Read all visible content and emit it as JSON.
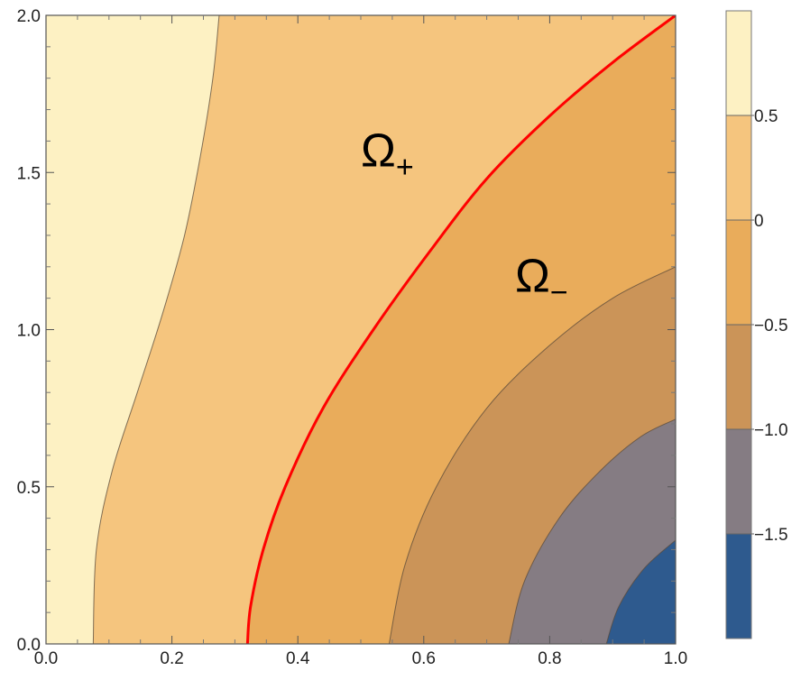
{
  "chart_data": {
    "type": "contour",
    "x_ticks": [
      "0.0",
      "0.2",
      "0.4",
      "0.6",
      "0.8",
      "1.0"
    ],
    "y_ticks": [
      "0.0",
      "0.5",
      "1.0",
      "1.5",
      "2.0"
    ],
    "xlim": [
      0,
      1
    ],
    "ylim": [
      0,
      2
    ],
    "grid": false,
    "contour_levels": [
      -1.5,
      -1.0,
      -0.5,
      0,
      0.5
    ],
    "levels": [
      {
        "range": [
          -2.0,
          -1.5
        ],
        "color": "#2e5a8e"
      },
      {
        "range": [
          -1.5,
          -1.0
        ],
        "color": "#857c83"
      },
      {
        "range": [
          -1.0,
          -0.5
        ],
        "color": "#cb9458"
      },
      {
        "range": [
          -0.5,
          0.0
        ],
        "color": "#e9ac5b"
      },
      {
        "range": [
          0.0,
          0.5
        ],
        "color": "#f5c57e"
      },
      {
        "range": [
          0.5,
          1.0
        ],
        "color": "#fdf1c3"
      }
    ],
    "contours": [
      {
        "level": 0.5,
        "points": [
          [
            0.075,
            0.0
          ],
          [
            0.08,
            0.3
          ],
          [
            0.105,
            0.55
          ],
          [
            0.145,
            0.8
          ],
          [
            0.185,
            1.05
          ],
          [
            0.22,
            1.3
          ],
          [
            0.245,
            1.55
          ],
          [
            0.265,
            1.8
          ],
          [
            0.275,
            2.0
          ]
        ]
      },
      {
        "level": -0.5,
        "points": [
          [
            0.545,
            0.0
          ],
          [
            0.57,
            0.25
          ],
          [
            0.62,
            0.5
          ],
          [
            0.7,
            0.75
          ],
          [
            0.8,
            0.95
          ],
          [
            0.9,
            1.1
          ],
          [
            1.0,
            1.2
          ]
        ]
      },
      {
        "level": -1.0,
        "points": [
          [
            0.735,
            0.0
          ],
          [
            0.76,
            0.2
          ],
          [
            0.815,
            0.4
          ],
          [
            0.88,
            0.55
          ],
          [
            0.945,
            0.66
          ],
          [
            1.0,
            0.715
          ]
        ]
      },
      {
        "level": -1.5,
        "points": [
          [
            0.89,
            0.0
          ],
          [
            0.91,
            0.12
          ],
          [
            0.95,
            0.24
          ],
          [
            1.0,
            0.33
          ]
        ]
      }
    ],
    "boundary_curve": {
      "color": "#ff0000",
      "points": [
        [
          0.32,
          0.0
        ],
        [
          0.325,
          0.12
        ],
        [
          0.345,
          0.3
        ],
        [
          0.38,
          0.5
        ],
        [
          0.44,
          0.75
        ],
        [
          0.52,
          1.0
        ],
        [
          0.61,
          1.25
        ],
        [
          0.7,
          1.48
        ],
        [
          0.8,
          1.68
        ],
        [
          0.9,
          1.85
        ],
        [
          1.0,
          2.0
        ]
      ]
    },
    "annotations": [
      {
        "base": "Ω",
        "sub": "+",
        "x": 0.5,
        "y": 1.52
      },
      {
        "base": "Ω",
        "sub": "−",
        "x": 0.745,
        "y": 1.12
      }
    ],
    "colorbar": {
      "range": [
        -2.0,
        1.0
      ],
      "tick_values": [
        0.5,
        0,
        -0.5,
        -1.0,
        -1.5
      ],
      "tick_labels": [
        "0.5",
        "0",
        "−0.5",
        "−1.0",
        "−1.5"
      ]
    }
  }
}
